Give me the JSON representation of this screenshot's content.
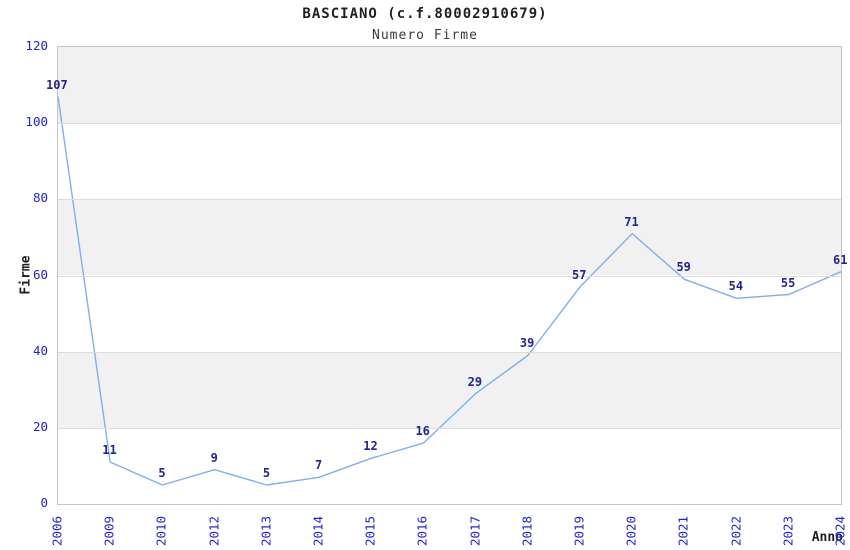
{
  "header": {
    "title": "BASCIANO (c.f.80002910679)",
    "subtitle": "Numero Firme"
  },
  "chart_data": {
    "type": "line",
    "title": "BASCIANO (c.f.80002910679)",
    "subtitle": "Numero Firme",
    "xlabel": "Anno",
    "ylabel": "Firme",
    "categories": [
      "2006",
      "2009",
      "2010",
      "2012",
      "2013",
      "2014",
      "2015",
      "2016",
      "2017",
      "2018",
      "2019",
      "2020",
      "2021",
      "2022",
      "2023",
      "2024"
    ],
    "values": [
      107,
      11,
      5,
      9,
      5,
      7,
      12,
      16,
      29,
      39,
      57,
      71,
      59,
      54,
      55,
      61
    ],
    "ylim": [
      0,
      120
    ],
    "yticks": [
      0,
      20,
      40,
      60,
      80,
      100,
      120
    ],
    "grid": "alternating-horizontal-bands",
    "legend": "none",
    "point_markers": "none",
    "colors": {
      "line": "#7fb0e8",
      "point_label": "#24248f",
      "tick_label": "#2323cd",
      "band": "#f1f1f1",
      "gridline": "#dcdcdc",
      "plot_border": "#c6c6c6",
      "title_text": "#1f1f1f",
      "subtitle_text": "#3a3a3a"
    }
  }
}
